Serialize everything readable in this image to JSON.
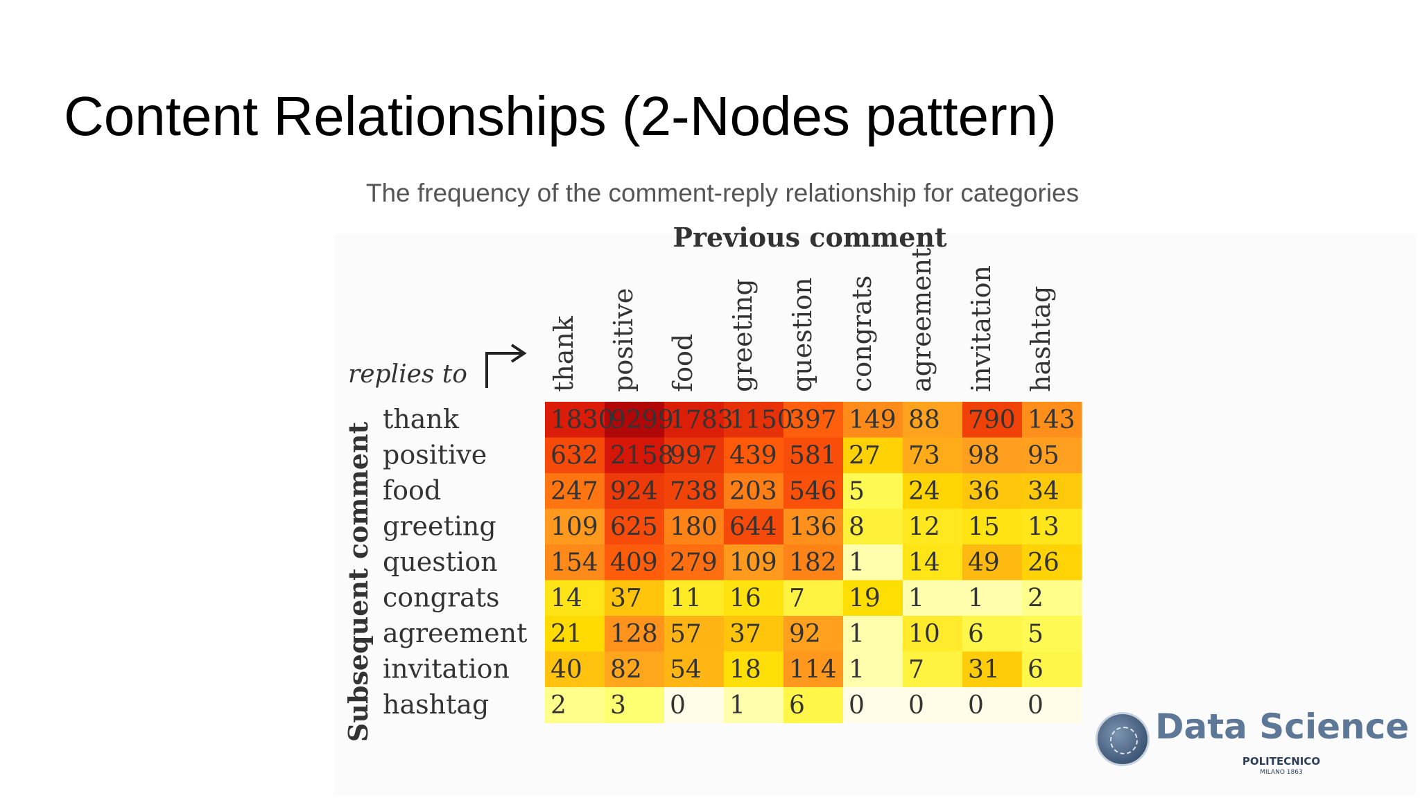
{
  "slide": {
    "title": "Content Relationships (2-Nodes pattern)",
    "subtitle": "The frequency of the comment-reply relationship for categories"
  },
  "logo": {
    "name": "Data Science",
    "line1": "POLITECNICO",
    "line2": "MILANO 1863",
    "emblem": "university-seal-icon"
  },
  "chart_data": {
    "type": "heatmap",
    "title": "Previous comment",
    "corner_label": "replies to",
    "corner_icon": "arrow-up-right-icon",
    "xlabel": "Previous comment",
    "ylabel": "Subsequent comment",
    "columns": [
      "thank",
      "positive",
      "food",
      "greeting",
      "question",
      "congrats",
      "agreement",
      "invitation",
      "hashtag"
    ],
    "rows": [
      "thank",
      "positive",
      "food",
      "greeting",
      "question",
      "congrats",
      "agreement",
      "invitation",
      "hashtag"
    ],
    "values": [
      [
        1830,
        9299,
        1783,
        1150,
        397,
        149,
        88,
        790,
        143
      ],
      [
        632,
        2158,
        997,
        439,
        581,
        27,
        73,
        98,
        95
      ],
      [
        247,
        924,
        738,
        203,
        546,
        5,
        24,
        36,
        34
      ],
      [
        109,
        625,
        180,
        644,
        136,
        8,
        12,
        15,
        13
      ],
      [
        154,
        409,
        279,
        109,
        182,
        1,
        14,
        49,
        26
      ],
      [
        14,
        37,
        11,
        16,
        7,
        19,
        1,
        1,
        2
      ],
      [
        21,
        128,
        57,
        37,
        92,
        1,
        10,
        6,
        5
      ],
      [
        40,
        82,
        54,
        18,
        114,
        1,
        7,
        31,
        6
      ],
      [
        2,
        3,
        0,
        1,
        6,
        0,
        0,
        0,
        0
      ]
    ],
    "colormap": [
      "#fffde8",
      "#ffff66",
      "#ffdd00",
      "#ffa020",
      "#ff5a0a",
      "#d81808",
      "#b00808"
    ]
  }
}
